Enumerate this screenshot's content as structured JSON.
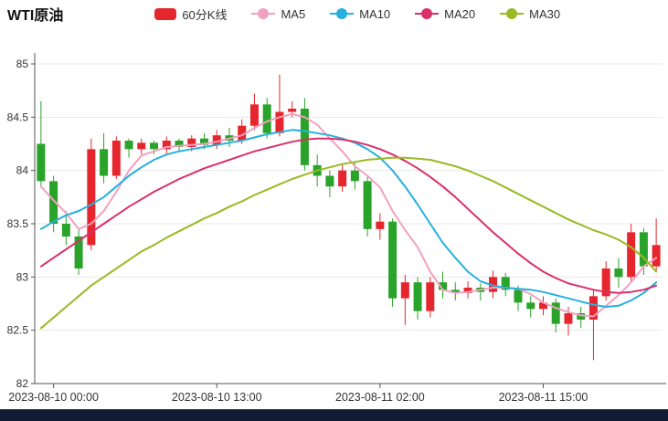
{
  "header": {
    "title": "WTI原油",
    "legend": [
      {
        "label": "60分K线",
        "color": "#e5262d",
        "type": "candlestick"
      },
      {
        "label": "MA5",
        "color": "#f2a0c0",
        "type": "line"
      },
      {
        "label": "MA10",
        "color": "#27b0dd",
        "type": "line"
      },
      {
        "label": "MA20",
        "color": "#d9306b",
        "type": "line"
      },
      {
        "label": "MA30",
        "color": "#9aba23",
        "type": "line"
      }
    ]
  },
  "chart_data": {
    "type": "candlestick",
    "title": "WTI原油",
    "interval": "60分K线",
    "y_axis": {
      "min": 82,
      "max": 85,
      "ticks": [
        85,
        84.5,
        84,
        83.5,
        83,
        82.5,
        82
      ],
      "tick_labels": [
        "85",
        "84.5",
        "84",
        "83.5",
        "83",
        "82.5",
        "82"
      ]
    },
    "x_axis": {
      "labels": [
        {
          "index": 1,
          "text": "2023-08-10 00:00"
        },
        {
          "index": 14,
          "text": "2023-08-10 13:00"
        },
        {
          "index": 27,
          "text": "2023-08-11 02:00"
        },
        {
          "index": 40,
          "text": "2023-08-11 15:00"
        }
      ]
    },
    "colors": {
      "up": "#e5262d",
      "down": "#2aa32a",
      "grid": "#e8e8e8",
      "axis": "#555",
      "text": "#333"
    },
    "candle_format": "[open, close, low, high]",
    "candles": [
      [
        84.25,
        83.9,
        83.85,
        84.65
      ],
      [
        83.9,
        83.5,
        83.42,
        83.95
      ],
      [
        83.5,
        83.38,
        83.3,
        83.62
      ],
      [
        83.38,
        83.08,
        83.02,
        83.45
      ],
      [
        83.3,
        84.2,
        83.25,
        84.3
      ],
      [
        84.2,
        83.95,
        83.88,
        84.35
      ],
      [
        83.95,
        84.28,
        83.92,
        84.32
      ],
      [
        84.28,
        84.2,
        84.12,
        84.3
      ],
      [
        84.2,
        84.26,
        84.15,
        84.3
      ],
      [
        84.26,
        84.2,
        84.15,
        84.28
      ],
      [
        84.2,
        84.28,
        84.16,
        84.32
      ],
      [
        84.28,
        84.22,
        84.17,
        84.3
      ],
      [
        84.22,
        84.3,
        84.18,
        84.33
      ],
      [
        84.3,
        84.24,
        84.2,
        84.35
      ],
      [
        84.24,
        84.33,
        84.2,
        84.38
      ],
      [
        84.33,
        84.28,
        84.22,
        84.4
      ],
      [
        84.28,
        84.42,
        84.25,
        84.48
      ],
      [
        84.42,
        84.62,
        84.38,
        84.72
      ],
      [
        84.62,
        84.35,
        84.3,
        84.68
      ],
      [
        84.35,
        84.55,
        84.32,
        84.9
      ],
      [
        84.55,
        84.58,
        84.5,
        84.65
      ],
      [
        84.58,
        84.05,
        84.0,
        84.68
      ],
      [
        84.05,
        83.95,
        83.85,
        84.15
      ],
      [
        83.95,
        83.85,
        83.75,
        84.0
      ],
      [
        83.85,
        84.0,
        83.8,
        84.05
      ],
      [
        84.0,
        83.9,
        83.82,
        84.08
      ],
      [
        83.9,
        83.45,
        83.38,
        83.95
      ],
      [
        83.45,
        83.52,
        83.35,
        83.6
      ],
      [
        83.52,
        82.8,
        82.72,
        83.55
      ],
      [
        82.8,
        82.95,
        82.55,
        83.02
      ],
      [
        82.95,
        82.68,
        82.6,
        83.0
      ],
      [
        82.68,
        82.95,
        82.62,
        83.0
      ],
      [
        82.95,
        82.88,
        82.8,
        83.05
      ],
      [
        82.88,
        82.85,
        82.78,
        82.95
      ],
      [
        82.85,
        82.9,
        82.8,
        82.96
      ],
      [
        82.9,
        82.86,
        82.78,
        82.94
      ],
      [
        82.86,
        83.0,
        82.8,
        83.06
      ],
      [
        83.0,
        82.88,
        82.82,
        83.04
      ],
      [
        82.88,
        82.76,
        82.68,
        82.92
      ],
      [
        82.76,
        82.7,
        82.62,
        82.82
      ],
      [
        82.7,
        82.76,
        82.64,
        82.82
      ],
      [
        82.76,
        82.56,
        82.48,
        82.8
      ],
      [
        82.56,
        82.66,
        82.45,
        82.72
      ],
      [
        82.66,
        82.6,
        82.52,
        82.72
      ],
      [
        82.6,
        82.82,
        82.22,
        82.88
      ],
      [
        82.82,
        83.08,
        82.78,
        83.15
      ],
      [
        83.08,
        83.0,
        82.9,
        83.18
      ],
      [
        83.0,
        83.42,
        82.95,
        83.5
      ],
      [
        83.42,
        83.1,
        83.02,
        83.46
      ],
      [
        83.1,
        83.3,
        83.05,
        83.55
      ]
    ],
    "series": [
      {
        "name": "MA5",
        "color": "#f2a0c0",
        "values": [
          83.85,
          83.72,
          83.6,
          83.45,
          83.5,
          83.62,
          83.8,
          84.0,
          84.14,
          84.18,
          84.22,
          84.23,
          84.24,
          84.25,
          84.27,
          84.3,
          84.33,
          84.4,
          84.46,
          84.5,
          84.53,
          84.5,
          84.43,
          84.3,
          84.18,
          84.04,
          83.95,
          83.84,
          83.62,
          83.44,
          83.28,
          83.05,
          82.88,
          82.85,
          82.86,
          82.88,
          82.9,
          82.9,
          82.89,
          82.84,
          82.76,
          82.71,
          82.67,
          82.64,
          82.63,
          82.73,
          82.83,
          82.95,
          83.1,
          83.18
        ]
      },
      {
        "name": "MA10",
        "color": "#27b0dd",
        "values": [
          83.45,
          83.52,
          83.58,
          83.62,
          83.68,
          83.75,
          83.85,
          83.95,
          84.03,
          84.1,
          84.15,
          84.18,
          84.2,
          84.22,
          84.24,
          84.26,
          84.28,
          84.31,
          84.34,
          84.36,
          84.38,
          84.37,
          84.35,
          84.33,
          84.3,
          84.26,
          84.2,
          84.12,
          84.0,
          83.85,
          83.68,
          83.5,
          83.32,
          83.18,
          83.05,
          82.96,
          82.92,
          82.9,
          82.89,
          82.88,
          82.86,
          82.83,
          82.8,
          82.77,
          82.74,
          82.72,
          82.73,
          82.78,
          82.85,
          82.95
        ]
      },
      {
        "name": "MA20",
        "color": "#d9306b",
        "values": [
          83.1,
          83.18,
          83.26,
          83.34,
          83.42,
          83.5,
          83.58,
          83.66,
          83.73,
          83.8,
          83.86,
          83.92,
          83.97,
          84.02,
          84.06,
          84.1,
          84.14,
          84.18,
          84.21,
          84.24,
          84.27,
          84.29,
          84.3,
          84.3,
          84.29,
          84.27,
          84.24,
          84.2,
          84.15,
          84.09,
          84.02,
          83.94,
          83.85,
          83.75,
          83.64,
          83.53,
          83.42,
          83.32,
          83.22,
          83.13,
          83.05,
          82.99,
          82.94,
          82.91,
          82.88,
          82.86,
          82.85,
          82.86,
          82.88,
          82.92
        ]
      },
      {
        "name": "MA30",
        "color": "#9aba23",
        "values": [
          82.52,
          82.62,
          82.72,
          82.82,
          82.92,
          83.0,
          83.08,
          83.16,
          83.24,
          83.3,
          83.37,
          83.43,
          83.49,
          83.55,
          83.6,
          83.66,
          83.71,
          83.77,
          83.82,
          83.87,
          83.92,
          83.96,
          84.0,
          84.03,
          84.06,
          84.08,
          84.1,
          84.11,
          84.12,
          84.12,
          84.11,
          84.1,
          84.07,
          84.04,
          84.0,
          83.95,
          83.9,
          83.84,
          83.78,
          83.72,
          83.66,
          83.6,
          83.54,
          83.49,
          83.44,
          83.4,
          83.35,
          83.28,
          83.18,
          83.05
        ]
      }
    ],
    "legend_position": "top",
    "grid": true
  },
  "datazoom": {
    "color": "#121c33"
  }
}
